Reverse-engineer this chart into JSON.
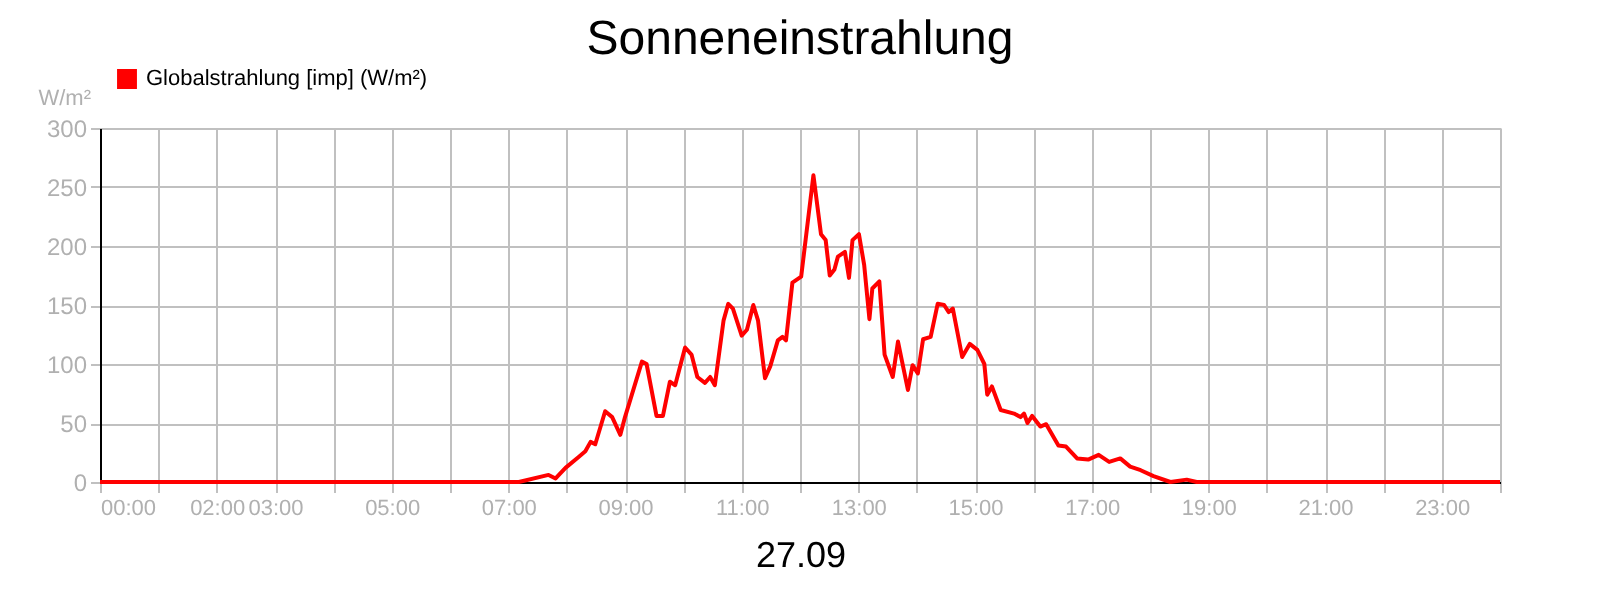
{
  "chart_data": {
    "type": "line",
    "title": "Sonneneinstrahlung",
    "xlabel": "27.09",
    "ylabel": "W/m²",
    "xlim": [
      0,
      24
    ],
    "ylim": [
      0,
      300
    ],
    "yticks": [
      0,
      50,
      100,
      150,
      200,
      250,
      300
    ],
    "xticks": [
      {
        "value": 0,
        "label": "00:00"
      },
      {
        "value": 1,
        "label": null
      },
      {
        "value": 2,
        "label": "02:00"
      },
      {
        "value": 3,
        "label": "03:00"
      },
      {
        "value": 4,
        "label": null
      },
      {
        "value": 5,
        "label": "05:00"
      },
      {
        "value": 6,
        "label": null
      },
      {
        "value": 7,
        "label": "07:00"
      },
      {
        "value": 8,
        "label": null
      },
      {
        "value": 9,
        "label": "09:00"
      },
      {
        "value": 10,
        "label": null
      },
      {
        "value": 11,
        "label": "11:00"
      },
      {
        "value": 12,
        "label": null
      },
      {
        "value": 13,
        "label": "13:00"
      },
      {
        "value": 14,
        "label": null
      },
      {
        "value": 15,
        "label": "15:00"
      },
      {
        "value": 16,
        "label": null
      },
      {
        "value": 17,
        "label": "17:00"
      },
      {
        "value": 18,
        "label": null
      },
      {
        "value": 19,
        "label": "19:00"
      },
      {
        "value": 20,
        "label": null
      },
      {
        "value": 21,
        "label": "21:00"
      },
      {
        "value": 22,
        "label": null
      },
      {
        "value": 23,
        "label": "23:00"
      },
      {
        "value": 24,
        "label": null
      }
    ],
    "grid": true,
    "legend": "top left",
    "marker": "none",
    "line_style": "solid",
    "series": [
      {
        "name": "Globalstrahlung [imp] (W/m²)",
        "color": "#ff0000",
        "x": [
          0,
          7.18,
          7.69,
          7.81,
          7.98,
          8.2,
          8.32,
          8.41,
          8.49,
          8.66,
          8.78,
          8.92,
          9.0,
          9.29,
          9.37,
          9.54,
          9.65,
          9.77,
          9.86,
          10.03,
          10.14,
          10.24,
          10.37,
          10.46,
          10.54,
          10.69,
          10.77,
          10.85,
          11.0,
          11.09,
          11.2,
          11.28,
          11.4,
          11.49,
          11.62,
          11.7,
          11.76,
          11.87,
          12.02,
          12.23,
          12.36,
          12.44,
          12.51,
          12.59,
          12.65,
          12.77,
          12.84,
          12.9,
          13.01,
          13.1,
          13.19,
          13.24,
          13.36,
          13.45,
          13.59,
          13.68,
          13.75,
          13.85,
          13.93,
          14.02,
          14.11,
          14.24,
          14.36,
          14.47,
          14.55,
          14.62,
          14.78,
          14.91,
          15.04,
          15.16,
          15.21,
          15.29,
          15.44,
          15.67,
          15.78,
          15.84,
          15.9,
          15.98,
          16.12,
          16.22,
          16.43,
          16.56,
          16.75,
          16.94,
          17.12,
          17.3,
          17.49,
          17.66,
          17.84,
          18.06,
          18.35,
          18.63,
          18.8,
          24
        ],
        "values": [
          0,
          0,
          6,
          3,
          12,
          21,
          26,
          34,
          32,
          60,
          55,
          40,
          55,
          102,
          100,
          56,
          56,
          85,
          82,
          114,
          108,
          89,
          84,
          89,
          82,
          137,
          151,
          147,
          124,
          129,
          150,
          137,
          88,
          98,
          120,
          123,
          120,
          169,
          174,
          260,
          210,
          205,
          175,
          180,
          191,
          195,
          173,
          205,
          210,
          184,
          138,
          164,
          170,
          108,
          89,
          119,
          102,
          78,
          99,
          92,
          121,
          123,
          151,
          150,
          144,
          147,
          106,
          117,
          112,
          100,
          74,
          81,
          61,
          58,
          55,
          58,
          50,
          56,
          47,
          49,
          31,
          30,
          20,
          19,
          23,
          17,
          20,
          13,
          10,
          5,
          0,
          2,
          0,
          0
        ]
      }
    ]
  }
}
